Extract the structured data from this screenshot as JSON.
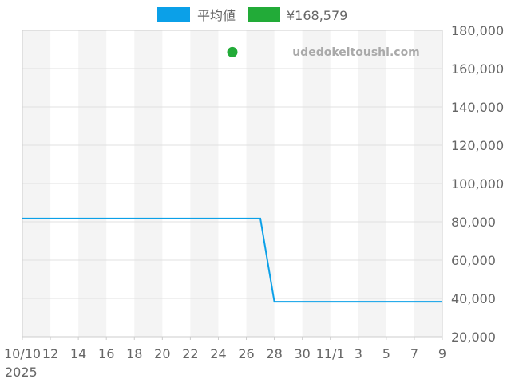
{
  "chart_data": {
    "type": "line",
    "legend": [
      {
        "name": "平均値",
        "color": "#0ba0e8"
      },
      {
        "name": "¥168,579",
        "color": "#22ab38"
      }
    ],
    "legend_placement": "top",
    "watermark": "udedokeitoushi.com",
    "x_start": "2025-10-10",
    "x_end": "2025-11-09",
    "x_tick_labels": [
      "10/10",
      "12",
      "14",
      "16",
      "18",
      "20",
      "22",
      "24",
      "26",
      "28",
      "30",
      "11/1",
      "3",
      "5",
      "7",
      "9"
    ],
    "x_year_label": "2025",
    "ylim": [
      20000,
      180000
    ],
    "y_ticks": [
      20000,
      40000,
      60000,
      80000,
      100000,
      120000,
      140000,
      160000,
      180000
    ],
    "y_tick_labels": [
      "20,000",
      "40,000",
      "60,000",
      "80,000",
      "100,000",
      "120,000",
      "140,000",
      "160,000",
      "180,000"
    ],
    "grid": true,
    "alternating_day_bands": true,
    "series": [
      {
        "name": "平均値",
        "color": "#0ba0e8",
        "points": [
          {
            "x": "2025-10-10",
            "y": 81700
          },
          {
            "x": "2025-10-27",
            "y": 81700
          },
          {
            "x": "2025-10-28",
            "y": 38300
          },
          {
            "x": "2025-11-09",
            "y": 38300
          }
        ]
      },
      {
        "name": "¥168,579",
        "color": "#22ab38",
        "type": "scatter",
        "points": [
          {
            "x": "2025-10-25",
            "y": 168579
          }
        ]
      }
    ]
  }
}
